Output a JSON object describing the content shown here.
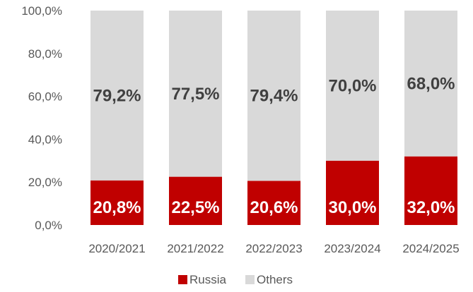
{
  "chart_data": {
    "type": "bar",
    "stacked": true,
    "categories": [
      "2020/2021",
      "2021/2022",
      "2022/2023",
      "2023/2024",
      "2024/2025"
    ],
    "series": [
      {
        "name": "Russia",
        "values": [
          20.8,
          22.5,
          20.6,
          30.0,
          32.0
        ],
        "labels": [
          "20,8%",
          "22,5%",
          "20,6%",
          "30,0%",
          "32,0%"
        ],
        "color": "#c00000",
        "label_color": "#ffffff"
      },
      {
        "name": "Others",
        "values": [
          79.2,
          77.5,
          79.4,
          70.0,
          68.0
        ],
        "labels": [
          "79,2%",
          "77,5%",
          "79,4%",
          "70,0%",
          "68,0%"
        ],
        "color": "#d9d9d9",
        "label_color": "#404040"
      }
    ],
    "y_ticks": [
      0,
      20,
      40,
      60,
      80,
      100
    ],
    "y_tick_labels": [
      "0,0%",
      "20,0%",
      "40,0%",
      "60,0%",
      "80,0%",
      "100,0%"
    ],
    "ylim": [
      0,
      100
    ],
    "grid": false,
    "legend": "bottom",
    "title": "",
    "xlabel": "",
    "ylabel": ""
  }
}
